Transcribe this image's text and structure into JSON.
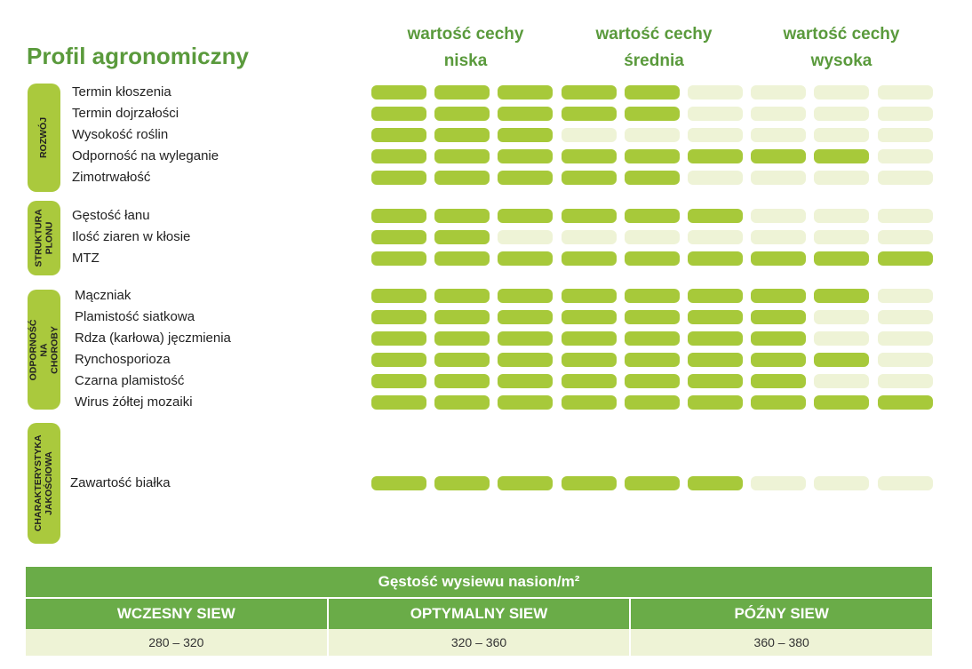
{
  "title": "Profil agronomiczny",
  "columns": [
    {
      "line1": "wartość cechy",
      "line2": "niska"
    },
    {
      "line1": "wartość cechy",
      "line2": "średnia"
    },
    {
      "line1": "wartość cechy",
      "line2": "wysoka"
    }
  ],
  "colors": {
    "bar_on": "#a7c93a",
    "bar_off": "#eef3d6",
    "accent": "#5a9a3c",
    "table_green": "#6aac48"
  },
  "groups": [
    {
      "label": "ROZWÓJ",
      "rows": [
        {
          "label": "Termin kłoszenia",
          "level": 5
        },
        {
          "label": "Termin dojrzałości",
          "level": 5
        },
        {
          "label": "Wysokość roślin",
          "level": 3
        },
        {
          "label": "Odporność na wyleganie",
          "level": 8
        },
        {
          "label": "Zimotrwałość",
          "level": 5
        }
      ]
    },
    {
      "label": "STRUKTURA PLONU",
      "rows": [
        {
          "label": "Gęstość łanu",
          "level": 6
        },
        {
          "label": "Ilość ziaren w kłosie",
          "level": 2
        },
        {
          "label": "MTZ",
          "level": 9
        }
      ]
    },
    {
      "label": "ODPORNOŚĆ NA CHOROBY",
      "rows": [
        {
          "label": "Mączniak",
          "level": 8
        },
        {
          "label": "Plamistość siatkowa",
          "level": 7
        },
        {
          "label": "Rdza (karłowa) jęczmienia",
          "level": 7
        },
        {
          "label": "Rynchosporioza",
          "level": 8
        },
        {
          "label": "Czarna plamistość",
          "level": 7
        },
        {
          "label": "Wirus żółtej mozaiki",
          "level": 9
        }
      ]
    },
    {
      "label": "CHARAKTERYSTYKA JAKOŚCIOWA",
      "rows": [
        {
          "label": "Zawartość białka",
          "level": 6
        }
      ]
    }
  ],
  "sowing_table": {
    "title": "Gęstość wysiewu nasion/m²",
    "headers": [
      "WCZESNY SIEW",
      "OPTYMALNY SIEW",
      "PÓŹNY SIEW"
    ],
    "values": [
      "280 – 320",
      "320 – 360",
      "360 – 380"
    ]
  }
}
